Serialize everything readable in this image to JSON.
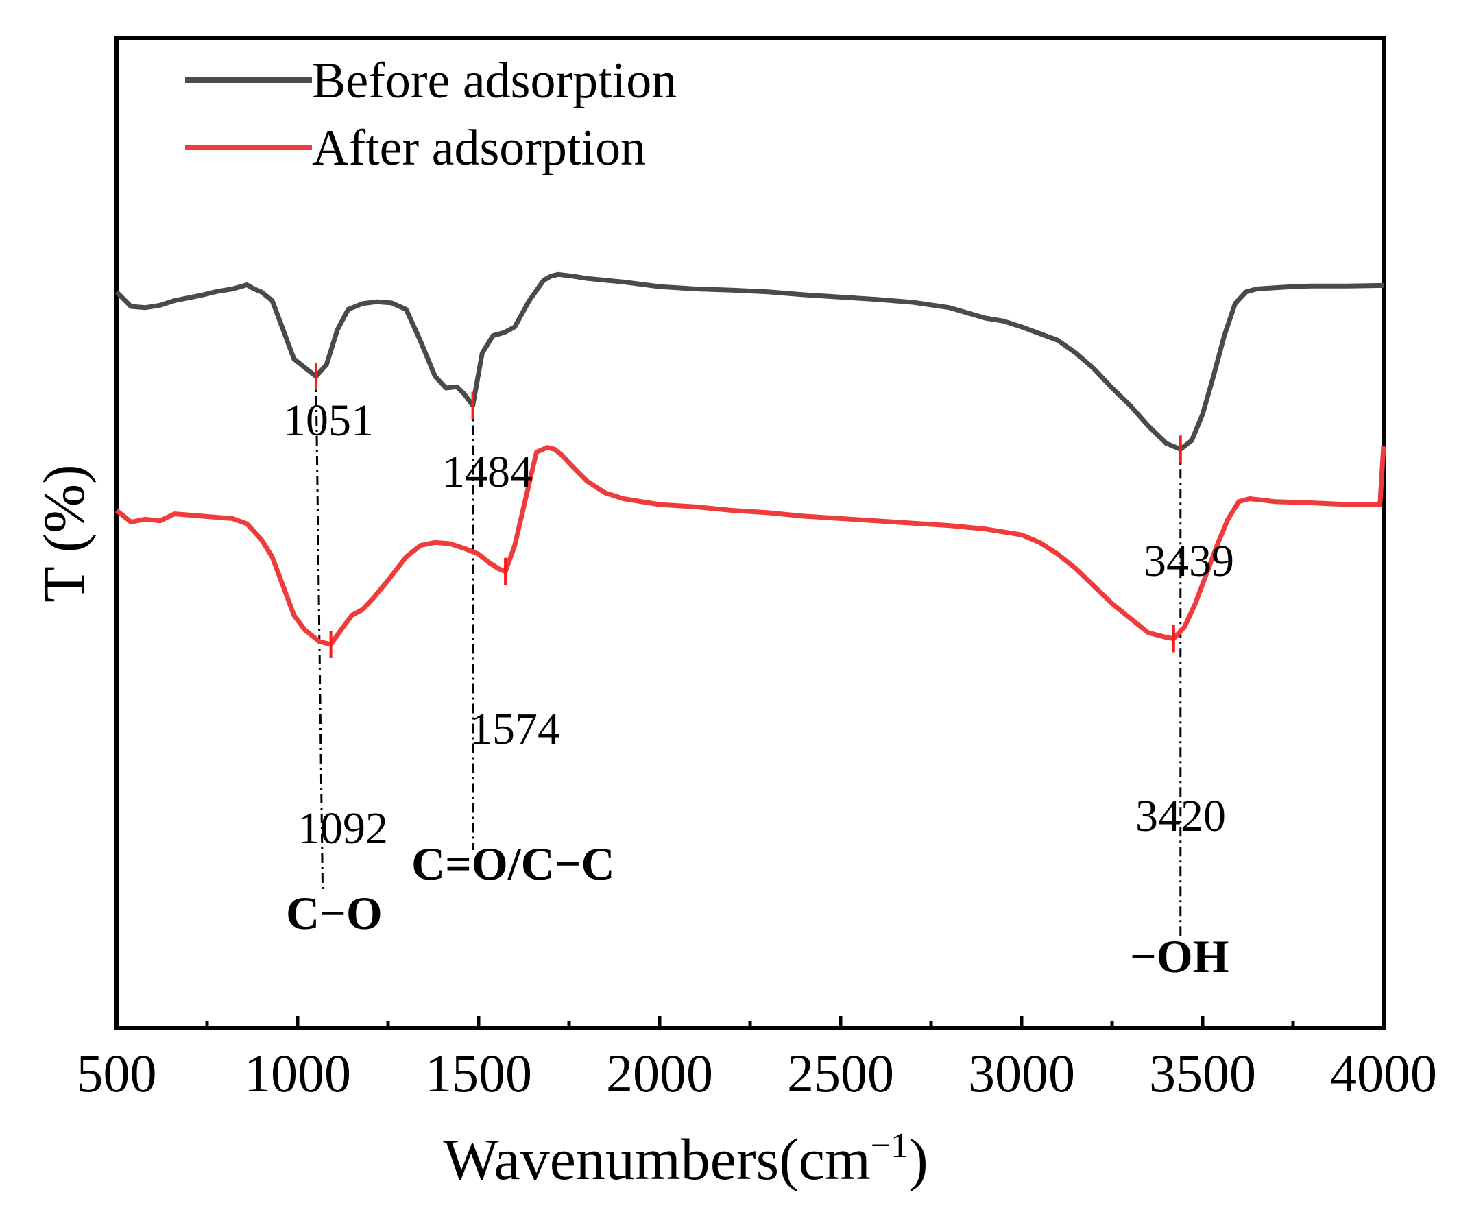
{
  "chart_data": {
    "type": "line",
    "title": "",
    "xlabel": "Wavenumbers(cm",
    "xlabel_sup": "−1",
    "xlabel_close": ")",
    "ylabel": "T (%)",
    "xlim": [
      500,
      4000
    ],
    "ylim": [
      0,
      100
    ],
    "x_ticks": [
      500,
      1000,
      1500,
      2000,
      2500,
      3000,
      3500,
      4000
    ],
    "x_tick_labels": [
      "500",
      "1000",
      "1500",
      "2000",
      "2500",
      "3000",
      "3500",
      "4000"
    ],
    "x_minor_ticks": [
      750,
      1250,
      1750,
      2250,
      2750,
      3250,
      3750
    ],
    "legend": {
      "location": "top-left"
    },
    "series": [
      {
        "name": "Before adsorption",
        "color": "#4a4a4a",
        "x": [
          500,
          540,
          580,
          620,
          660,
          700,
          740,
          780,
          820,
          860,
          880,
          900,
          930,
          960,
          990,
          1020,
          1051,
          1080,
          1110,
          1140,
          1180,
          1220,
          1260,
          1300,
          1340,
          1380,
          1410,
          1440,
          1460,
          1484,
          1510,
          1540,
          1570,
          1600,
          1640,
          1680,
          1700,
          1720,
          1760,
          1800,
          1900,
          2000,
          2100,
          2200,
          2300,
          2400,
          2500,
          2600,
          2700,
          2800,
          2900,
          2950,
          3000,
          3100,
          3150,
          3200,
          3250,
          3300,
          3350,
          3400,
          3439,
          3470,
          3500,
          3530,
          3560,
          3590,
          3620,
          3650,
          3700,
          3750,
          3800,
          3900,
          4000
        ],
        "y": [
          80.5,
          78.0,
          77.8,
          78.2,
          79.0,
          79.5,
          80.0,
          80.6,
          81.0,
          81.7,
          81.0,
          80.5,
          79.0,
          74.0,
          69.0,
          67.5,
          66.0,
          68.0,
          74.0,
          77.5,
          78.5,
          78.8,
          78.6,
          77.5,
          72.0,
          66.0,
          64.0,
          64.2,
          63.0,
          61.0,
          70.0,
          73.0,
          73.5,
          74.5,
          79.0,
          82.5,
          83.2,
          83.5,
          83.2,
          82.8,
          82.2,
          81.4,
          81.0,
          80.8,
          80.5,
          80.0,
          79.6,
          79.2,
          78.7,
          77.8,
          76.0,
          75.5,
          74.5,
          72.2,
          70.0,
          67.3,
          64.0,
          61.0,
          57.5,
          54.5,
          53.5,
          55.0,
          59.5,
          66.0,
          73.0,
          78.5,
          80.5,
          81.0,
          81.2,
          81.4,
          81.5,
          81.5,
          81.6
        ]
      },
      {
        "name": "After adsorption",
        "color": "#ef3b3b",
        "x": [
          500,
          540,
          580,
          620,
          660,
          700,
          740,
          780,
          820,
          860,
          900,
          930,
          960,
          990,
          1020,
          1060,
          1092,
          1120,
          1150,
          1180,
          1210,
          1250,
          1300,
          1340,
          1380,
          1420,
          1460,
          1500,
          1530,
          1555,
          1574,
          1600,
          1630,
          1660,
          1690,
          1710,
          1730,
          1760,
          1800,
          1850,
          1900,
          2000,
          2100,
          2200,
          2300,
          2400,
          2500,
          2600,
          2700,
          2800,
          2900,
          3000,
          3050,
          3100,
          3150,
          3200,
          3250,
          3300,
          3350,
          3400,
          3420,
          3450,
          3480,
          3510,
          3540,
          3570,
          3600,
          3630,
          3660,
          3700,
          3800,
          3900,
          3990,
          4000
        ],
        "y": [
          43.0,
          41.0,
          41.5,
          41.2,
          42.4,
          42.2,
          42.0,
          41.8,
          41.6,
          40.7,
          38.0,
          35.0,
          30.0,
          25.0,
          22.5,
          20.5,
          20.0,
          22.5,
          25.0,
          26.0,
          28.0,
          31.0,
          35.0,
          37.0,
          37.5,
          37.3,
          36.5,
          35.5,
          34.0,
          33.0,
          32.5,
          37.0,
          45.0,
          53.0,
          53.8,
          53.5,
          52.5,
          50.5,
          48.0,
          46.0,
          45.0,
          44.0,
          43.6,
          43.0,
          42.6,
          42.0,
          41.6,
          41.2,
          40.8,
          40.4,
          39.8,
          38.8,
          37.5,
          35.5,
          33.0,
          30.0,
          27.0,
          24.5,
          22.0,
          21.2,
          21.0,
          23.0,
          27.0,
          32.0,
          37.0,
          41.5,
          44.5,
          45.0,
          44.8,
          44.5,
          44.3,
          44.0,
          44.0,
          54.0
        ]
      }
    ],
    "annotations": {
      "peaks": [
        {
          "label": "1051",
          "x": 1051,
          "series": "Before adsorption"
        },
        {
          "label": "1484",
          "x": 1484,
          "series": "Before adsorption"
        },
        {
          "label": "3439",
          "x": 3439,
          "series": "Before adsorption"
        },
        {
          "label": "1092",
          "x": 1092,
          "series": "After adsorption"
        },
        {
          "label": "1574",
          "x": 1574,
          "series": "After adsorption"
        },
        {
          "label": "3420",
          "x": 3420,
          "series": "After adsorption"
        }
      ],
      "groups": [
        {
          "label": "C−O",
          "from_x": 1051,
          "to_x": 1092
        },
        {
          "label": "C=O/C−C",
          "from_x": 1484,
          "to_x": 1484
        },
        {
          "label": "−OH",
          "from_x": 3439,
          "to_x": 3439
        }
      ]
    }
  }
}
